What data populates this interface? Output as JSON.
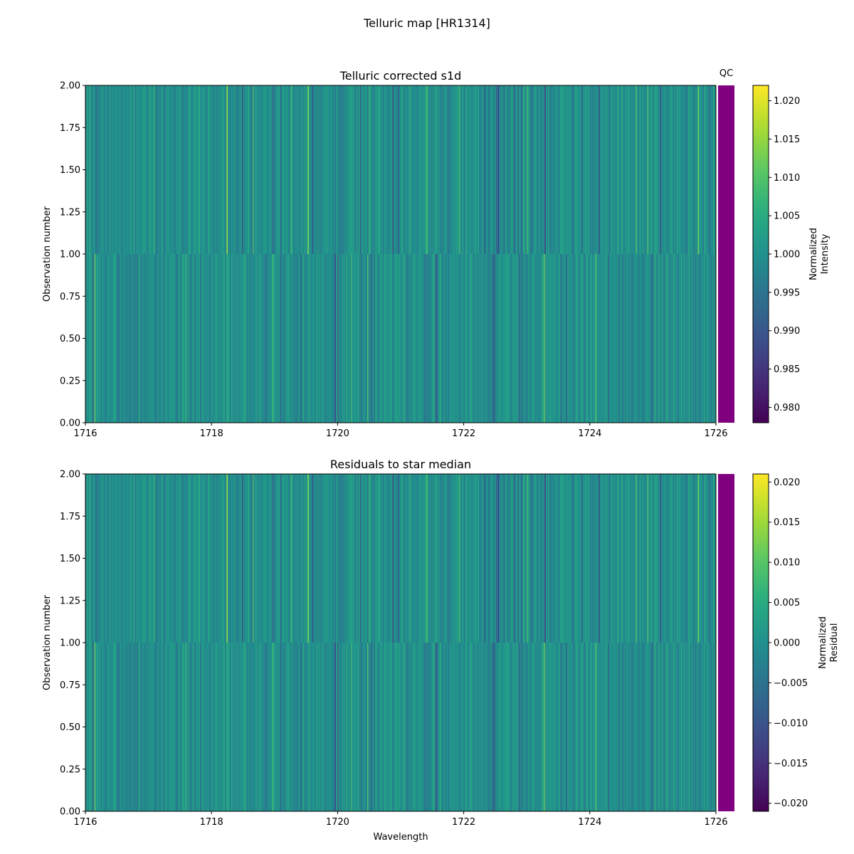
{
  "figure": {
    "title": "Telluric map [HR1314]"
  },
  "colors": {
    "qc_bar": "#800080",
    "colormap": "viridis"
  },
  "chart_data": [
    {
      "type": "heatmap",
      "title": "Telluric corrected s1d",
      "xlabel": "",
      "ylabel": "Observation number",
      "xlim": [
        1716,
        1726
      ],
      "ylim": [
        0,
        2
      ],
      "xticks": [
        "1716",
        "1718",
        "1720",
        "1722",
        "1724",
        "1726"
      ],
      "yticks": [
        "0.00",
        "0.25",
        "0.50",
        "0.75",
        "1.00",
        "1.25",
        "1.50",
        "1.75",
        "2.00"
      ],
      "rows": [
        "0",
        "1"
      ],
      "value_range": [
        0.978,
        1.022
      ],
      "qc_label": "QC",
      "colorbar": {
        "label_lines": [
          "Normalized",
          "Intensity"
        ],
        "range": [
          0.978,
          1.022
        ],
        "ticks": [
          "0.980",
          "0.985",
          "0.990",
          "0.995",
          "1.000",
          "1.005",
          "1.010",
          "1.015",
          "1.020"
        ]
      }
    },
    {
      "type": "heatmap",
      "title": "Residuals to star median",
      "xlabel": "Wavelength",
      "ylabel": "Observation number",
      "xlim": [
        1716,
        1726
      ],
      "ylim": [
        0,
        2
      ],
      "xticks": [
        "1716",
        "1718",
        "1720",
        "1722",
        "1724",
        "1726"
      ],
      "yticks": [
        "0.00",
        "0.25",
        "0.50",
        "0.75",
        "1.00",
        "1.25",
        "1.50",
        "1.75",
        "2.00"
      ],
      "rows": [
        "0",
        "1"
      ],
      "value_range": [
        -0.021,
        0.021
      ],
      "qc_label": "",
      "colorbar": {
        "label_lines": [
          "Normalized",
          "Residual"
        ],
        "range": [
          -0.021,
          0.021
        ],
        "ticks": [
          "−0.020",
          "−0.015",
          "−0.010",
          "−0.005",
          "0.000",
          "0.005",
          "0.010",
          "0.015",
          "0.020"
        ]
      }
    }
  ]
}
